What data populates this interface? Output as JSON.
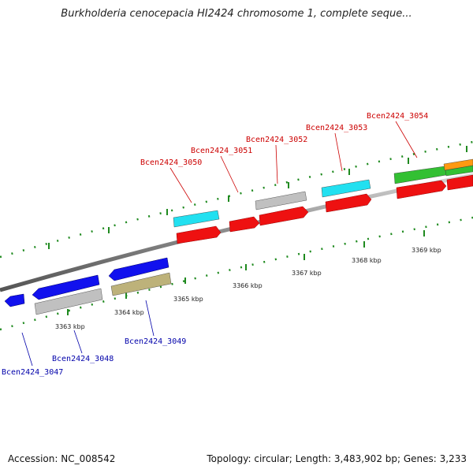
{
  "title": "Burkholderia cenocepacia HI2424 chromosome 1, complete seque...",
  "footer": {
    "accession": "Accession: NC_008542",
    "summary": "Topology: circular; Length: 3,483,902 bp; Genes: 3,233"
  },
  "colors": {
    "backbone": "#8a8a8a",
    "tick": "#1f8a1f",
    "forward_label": "#cc0000",
    "reverse_label": "#0000aa"
  },
  "scale": {
    "ticks": [
      "3363 kbp",
      "3364 kbp",
      "3365 kbp",
      "3366 kbp",
      "3367 kbp",
      "3368 kbp",
      "3369 kbp"
    ]
  },
  "gene_labels": {
    "forward": [
      "Bcen2424_3050",
      "Bcen2424_3051",
      "Bcen2424_3052",
      "Bcen2424_3053",
      "Bcen2424_3054"
    ],
    "reverse": [
      "Bcen2424_3047",
      "Bcen2424_3048",
      "Bcen2424_3049"
    ]
  },
  "features": {
    "forward_genes": [
      {
        "color": "#ee1111"
      },
      {
        "color": "#ee1111"
      },
      {
        "color": "#ee1111"
      },
      {
        "color": "#ee1111"
      },
      {
        "color": "#ee1111"
      },
      {
        "color": "#ee1111"
      }
    ],
    "forward_products": [
      {
        "color": "#22e0f0"
      },
      {
        "color": "#c0c0c0"
      },
      {
        "color": "#22e0f0"
      },
      {
        "color": "#33c033"
      },
      {
        "color": "#ff9911"
      },
      {
        "color": "#33c033"
      }
    ],
    "reverse_genes": [
      {
        "color": "#1111ee"
      },
      {
        "color": "#1111ee"
      },
      {
        "color": "#1111ee"
      }
    ],
    "reverse_products": [
      {
        "color": "#c0c0c0"
      },
      {
        "color": "#bdb27a"
      }
    ]
  }
}
